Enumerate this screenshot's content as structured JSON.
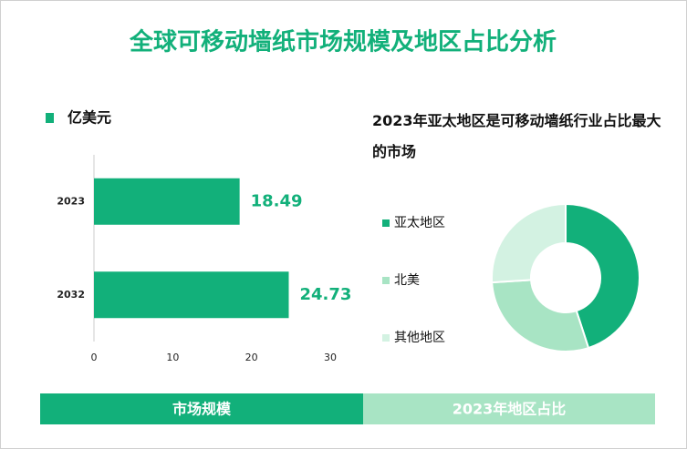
{
  "title": "全球可移动墙纸市场规模及地区占比分析",
  "chart_data": [
    {
      "type": "bar",
      "orientation": "horizontal",
      "categories": [
        "2023",
        "2032"
      ],
      "series": [
        {
          "name": "亿美元",
          "color": "#12b07a",
          "values": [
            18.49,
            24.73
          ]
        }
      ],
      "xlim": [
        0,
        30
      ],
      "xticks": [
        0,
        10,
        20,
        30
      ]
    },
    {
      "type": "pie",
      "title": "2023年亚太地区是可移动墙纸行业占比最大的市场",
      "categories": [
        "亚太地区",
        "北美",
        "其他地区"
      ],
      "values": [
        45,
        29,
        26
      ],
      "colors": [
        "#12b07a",
        "#a8e4c4",
        "#d3f2e2"
      ]
    }
  ],
  "tabs": [
    {
      "label": "市场规模",
      "color": "#12b07a"
    },
    {
      "label": "2023年地区占比",
      "color": "#a8e4c4"
    }
  ]
}
